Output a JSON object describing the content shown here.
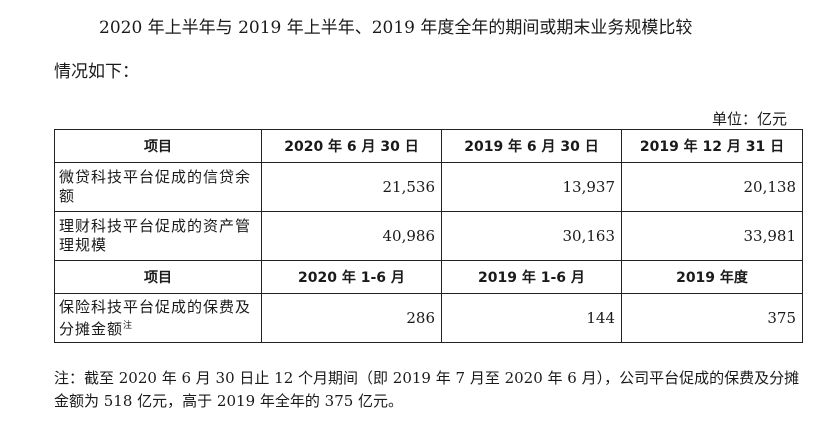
{
  "intro": {
    "line1": "2020 年上半年与 2019 年上半年、2019 年度全年的期间或期末业务规模比较",
    "line2": "情况如下："
  },
  "unit_label": "单位：亿元",
  "table": {
    "header1": [
      "项目",
      "2020 年 6 月 30 日",
      "2019 年 6 月 30 日",
      "2019 年 12 月 31 日"
    ],
    "rows1": [
      {
        "label": "微贷科技平台促成的信贷余额",
        "values": [
          "21,536",
          "13,937",
          "20,138"
        ]
      },
      {
        "label": "理财科技平台促成的资产管理规模",
        "values": [
          "40,986",
          "30,163",
          "33,981"
        ]
      }
    ],
    "header2": [
      "项目",
      "2020 年 1-6 月",
      "2019 年 1-6 月",
      "2019 年度"
    ],
    "rows2": [
      {
        "label": "保险科技平台促成的保费及分摊金额",
        "sup": "注",
        "values": [
          "286",
          "144",
          "375"
        ]
      }
    ]
  },
  "note": "注：截至 2020 年 6 月 30 日止 12 个月期间（即 2019 年 7 月至 2020 年 6 月），公司平台促成的保费及分摊金额为 518 亿元，高于 2019 年全年的 375 亿元。"
}
